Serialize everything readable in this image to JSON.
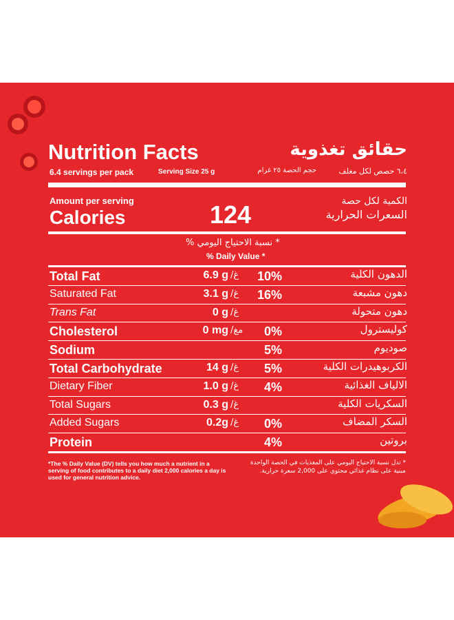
{
  "header": {
    "title": "Nutrition Facts",
    "title_ar": "حقائق تغذوية",
    "servings": "6.4 servings per pack",
    "serving_size": "Serving Size 25 g",
    "servings_ar": "٦،٤ حصص لكل مغلف",
    "serving_size_ar": "حجم الحصة ٢٥ غرام"
  },
  "calories": {
    "label_small": "Amount per serving",
    "label": "Calories",
    "value": 124,
    "label_small_ar": "الكمية لكل حصة",
    "label_ar": "السعرات الحرارية"
  },
  "dv_header": {
    "ar": "* نسبة الاحتياج اليومي %",
    "en": "% Daily Value *"
  },
  "rows": [
    {
      "name": "Total Fat",
      "style": "bold",
      "amount": "6.9 g",
      "unit_ar": "غ/",
      "dv": "10%",
      "name_ar": "الدهون الكلية"
    },
    {
      "name": "Saturated Fat",
      "style": "normal",
      "amount": "3.1 g",
      "unit_ar": "غ/",
      "dv": "16%",
      "name_ar": "دهون مشبعة"
    },
    {
      "name": "Trans Fat",
      "style": "italic",
      "amount": "0 g",
      "unit_ar": "غ/",
      "name_ar": "دهون متحولة"
    },
    {
      "name": "Cholesterol",
      "style": "bold",
      "amount": "0 mg",
      "unit_ar": "مغ/",
      "dv": "0%",
      "name_ar": "كوليسترول"
    },
    {
      "name": "Sodium",
      "style": "bold",
      "dv": "5%",
      "name_ar": "صوديوم"
    },
    {
      "name": "Total Carbohydrate",
      "style": "bold",
      "amount": "14 g",
      "unit_ar": "غ/",
      "dv": "5%",
      "name_ar": "الكربوهيدرات الكلية"
    },
    {
      "name": "Dietary Fiber",
      "style": "normal",
      "amount": "1.0 g",
      "unit_ar": "غ/",
      "dv": "4%",
      "name_ar": "الالياف الغذائية"
    },
    {
      "name": "Total Sugars",
      "style": "normal",
      "amount": "0.3 g",
      "unit_ar": "غ/",
      "name_ar": "السكريات الكلية"
    },
    {
      "name": "Added Sugars",
      "style": "normal",
      "amount": "0.2g",
      "unit_ar": "غ/",
      "dv": "0%",
      "name_ar": "السكر المضاف"
    },
    {
      "name": "Protein",
      "style": "bold",
      "dv": "4%",
      "name_ar": "بروتين"
    }
  ],
  "footnote": {
    "en": "*The % Daily Value (DV) tells you how much a nutrient in a serving of food contributes to a daily diet 2,000 calories a day is used for general nutrition advice.",
    "ar": "* تدل نسبة الاحتياج اليومي على المغذيات في الحصة الواحدة مبنية على نظام غذائي محتوي على 2,000 سعرة حرارية."
  }
}
